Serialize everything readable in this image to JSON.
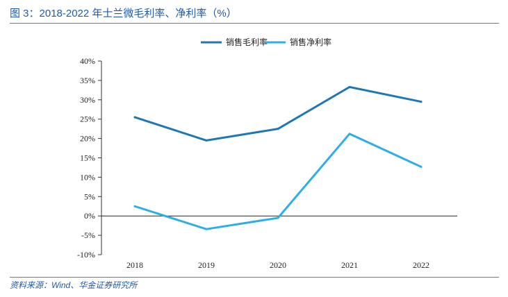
{
  "figure": {
    "title": "图 3：2018-2022 年士兰微毛利率、净利率（%）",
    "source": "资料来源：Wind、华金证券研究所"
  },
  "colors": {
    "title_text": "#1f5aa8",
    "rule": "#4a7fc0",
    "gross_margin": "#1f77b4",
    "net_margin": "#2eaee8"
  },
  "chart_data": {
    "type": "line",
    "title": "",
    "xlabel": "",
    "ylabel": "",
    "categories": [
      "2018",
      "2019",
      "2020",
      "2021",
      "2022"
    ],
    "ylim": [
      -10,
      40
    ],
    "yticks": [
      -10,
      -5,
      0,
      5,
      10,
      15,
      20,
      25,
      30,
      35,
      40
    ],
    "ytick_labels": [
      "-10%",
      "-5%",
      "0%",
      "5%",
      "10%",
      "15%",
      "20%",
      "25%",
      "30%",
      "35%",
      "40%"
    ],
    "legend_position": "top-center",
    "grid": false,
    "series": [
      {
        "name": "销售毛利率",
        "values": [
          25.5,
          19.5,
          22.5,
          33.3,
          29.5
        ],
        "color": "#1f77b4"
      },
      {
        "name": "销售净利率",
        "values": [
          2.5,
          -3.4,
          -0.5,
          21.2,
          12.7
        ],
        "color": "#2eaee8"
      }
    ]
  }
}
